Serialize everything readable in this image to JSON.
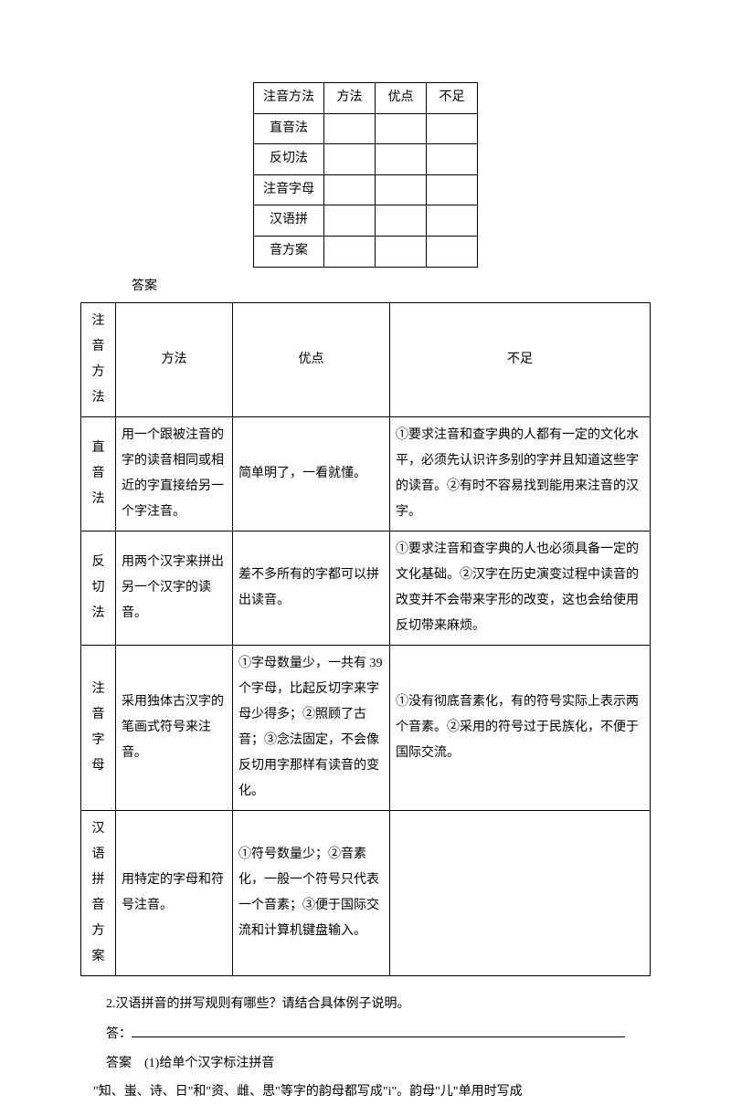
{
  "smallTable": {
    "headers": [
      "注音方法",
      "方法",
      "优点",
      "不足"
    ],
    "rows": [
      "直音法",
      "反切法",
      "注音字母",
      "汉语拼",
      "音方案"
    ]
  },
  "answerLabel": "答案",
  "bigTable": {
    "headers": [
      "注音方法",
      "方法",
      "优点",
      "不足"
    ],
    "rows": [
      {
        "name": "直音法",
        "nameChars": [
          "直",
          "音",
          "法"
        ],
        "method": "用一个跟被注音的字的读音相同或相近的字直接给另一个字注音。",
        "merit": "简单明了，一看就懂。",
        "demerit": "①要求注音和查字典的人都有一定的文化水平，必须先认识许多别的字并且知道这些字的读音。②有时不容易找到能用来注音的汉字。"
      },
      {
        "name": "反切法",
        "nameChars": [
          "反",
          "切",
          "法"
        ],
        "method": "用两个汉字来拼出另一个汉字的读音。",
        "merit": "差不多所有的字都可以拼出读音。",
        "demerit": "①要求注音和查字典的人也必须具备一定的文化基础。②汉字在历史演变过程中读音的改变并不会带来字形的改变，这也会给使用反切带来麻烦。"
      },
      {
        "name": "注音字母",
        "nameChars": [
          "注",
          "音",
          "字",
          "母"
        ],
        "method": "采用独体古汉字的笔画式符号来注音。",
        "merit": "①字母数量少，一共有 39 个字母，比起反切字来字母少得多；②照顾了古音；③念法固定，不会像反切用字那样有读音的变化。",
        "demerit": "①没有彻底音素化，有的符号实际上表示两个音素。②采用的符号过于民族化，不便于国际交流。"
      },
      {
        "name": "汉语拼音方案",
        "nameChars": [
          "汉语",
          "拼音",
          "方案"
        ],
        "method": "用特定的字母和符号注音。",
        "merit": "①符号数量少；②音素化，一般一个符号只代表一个音素；③便于国际交流和计算机键盘输入。",
        "demerit": ""
      }
    ]
  },
  "question2": "2.汉语拼音的拼写规则有哪些？请结合具体例子说明。",
  "answerPrefix": "答：",
  "answer2Label": "答案　(1)给单个汉字标注拼音",
  "answer2Body": "\"知、蚩、诗、日\"和\"资、雌、思\"等字的韵母都写成\"i\"。韵母\"儿\"单用时写成"
}
